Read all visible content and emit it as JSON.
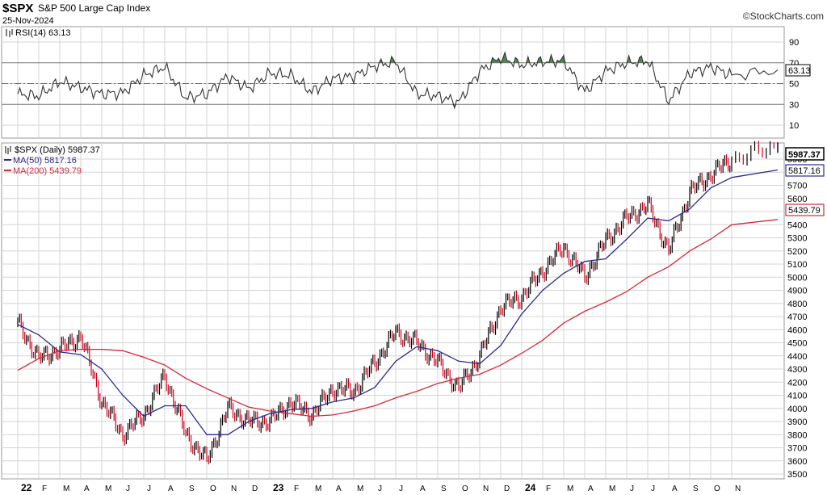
{
  "header": {
    "symbol": "$SPX",
    "name": "S&P 500 Large Cap Index",
    "date": "25-Nov-2024",
    "watermark": "©StockCharts.com"
  },
  "rsi_panel": {
    "legend": "RSI(14) 63.13",
    "current_label": "63.13",
    "levels": [
      90,
      70,
      50,
      30,
      10
    ],
    "overbought": 70,
    "oversold": 30,
    "midline": 50
  },
  "price_panel": {
    "legend_price": "$SPX (Daily) 5987.37",
    "legend_ma50": "MA(50) 5817.16",
    "legend_ma200": "MA(200) 5439.79",
    "label_price": "5987.37",
    "label_ma50": "5817.16",
    "label_ma200": "5439.79"
  },
  "x_axis": {
    "labels": [
      "22",
      "F",
      "M",
      "A",
      "M",
      "J",
      "J",
      "A",
      "S",
      "O",
      "N",
      "D",
      "23",
      "F",
      "M",
      "A",
      "M",
      "J",
      "J",
      "A",
      "S",
      "O",
      "N",
      "D",
      "24",
      "F",
      "M",
      "A",
      "M",
      "J",
      "J",
      "A",
      "S",
      "O",
      "N"
    ]
  },
  "colors": {
    "up": "#000000",
    "down": "#d0021b",
    "ma50": "#2b2b8c",
    "ma200": "#d6293b",
    "rsi_line": "#333333",
    "rsi_fill": "#4f7f4f",
    "grid": "#d4d4d4"
  },
  "chart_data": [
    {
      "type": "line",
      "title": "RSI(14)",
      "ylim": [
        0,
        100
      ],
      "y_ticks": [
        10,
        30,
        50,
        70,
        90
      ],
      "series": [
        {
          "name": "RSI(14)",
          "x": [
            "2022-01",
            "2022-02",
            "2022-03",
            "2022-04",
            "2022-05",
            "2022-06",
            "2022-07",
            "2022-08",
            "2022-09",
            "2022-10",
            "2022-11",
            "2022-12",
            "2023-01",
            "2023-02",
            "2023-03",
            "2023-04",
            "2023-05",
            "2023-06",
            "2023-07",
            "2023-08",
            "2023-09",
            "2023-10",
            "2023-11",
            "2023-12",
            "2024-01",
            "2024-02",
            "2024-03",
            "2024-04",
            "2024-05",
            "2024-06",
            "2024-07",
            "2024-08",
            "2024-09",
            "2024-10",
            "2024-11",
            "2024-11-25"
          ],
          "values": [
            40,
            38,
            52,
            46,
            40,
            41,
            58,
            66,
            36,
            40,
            57,
            45,
            60,
            58,
            42,
            55,
            57,
            67,
            71,
            40,
            38,
            32,
            62,
            75,
            68,
            71,
            72,
            42,
            62,
            70,
            72,
            33,
            60,
            66,
            58,
            63.13
          ]
        }
      ]
    },
    {
      "type": "line",
      "title": "$SPX (Daily)",
      "ylim": [
        3450,
        6050
      ],
      "y_ticks": [
        3500,
        3600,
        3700,
        3800,
        3900,
        4000,
        4100,
        4200,
        4300,
        4400,
        4500,
        4600,
        4700,
        4800,
        4900,
        5000,
        5100,
        5200,
        5300,
        5400,
        5500,
        5600,
        5700,
        5800,
        5900
      ],
      "series": [
        {
          "name": "$SPX (Daily)",
          "x": [
            "2022-01",
            "2022-02",
            "2022-03",
            "2022-04",
            "2022-05",
            "2022-06",
            "2022-07",
            "2022-08",
            "2022-09",
            "2022-10",
            "2022-11",
            "2022-12",
            "2023-01",
            "2023-02",
            "2023-03",
            "2023-04",
            "2023-05",
            "2023-06",
            "2023-07",
            "2023-08",
            "2023-09",
            "2023-10",
            "2023-11",
            "2023-12",
            "2024-01",
            "2024-02",
            "2024-03",
            "2024-04",
            "2024-05",
            "2024-06",
            "2024-07",
            "2024-08",
            "2024-09",
            "2024-10",
            "2024-11",
            "2024-11-25"
          ],
          "values": [
            4650,
            4380,
            4450,
            4550,
            4050,
            3800,
            3950,
            4250,
            3800,
            3600,
            4000,
            3900,
            3900,
            4050,
            3950,
            4150,
            4130,
            4350,
            4580,
            4500,
            4350,
            4150,
            4400,
            4770,
            4850,
            5050,
            5230,
            5000,
            5280,
            5450,
            5550,
            5200,
            5650,
            5780,
            5900,
            5987.37
          ]
        },
        {
          "name": "MA(50)",
          "x": [
            "2022-01",
            "2022-02",
            "2022-03",
            "2022-04",
            "2022-05",
            "2022-06",
            "2022-07",
            "2022-08",
            "2022-09",
            "2022-10",
            "2022-11",
            "2022-12",
            "2023-01",
            "2023-02",
            "2023-03",
            "2023-04",
            "2023-05",
            "2023-06",
            "2023-07",
            "2023-08",
            "2023-09",
            "2023-10",
            "2023-11",
            "2023-12",
            "2024-01",
            "2024-02",
            "2024-03",
            "2024-04",
            "2024-05",
            "2024-06",
            "2024-07",
            "2024-08",
            "2024-09",
            "2024-10",
            "2024-11",
            "2024-11-25"
          ],
          "values": [
            4640,
            4560,
            4430,
            4410,
            4300,
            4100,
            3940,
            4020,
            4020,
            3800,
            3800,
            3900,
            3960,
            3990,
            4000,
            4050,
            4080,
            4160,
            4360,
            4470,
            4440,
            4360,
            4340,
            4480,
            4720,
            4900,
            5030,
            5120,
            5140,
            5290,
            5450,
            5430,
            5520,
            5680,
            5760,
            5817.16
          ]
        },
        {
          "name": "MA(200)",
          "x": [
            "2022-01",
            "2022-02",
            "2022-03",
            "2022-04",
            "2022-05",
            "2022-06",
            "2022-07",
            "2022-08",
            "2022-09",
            "2022-10",
            "2022-11",
            "2022-12",
            "2023-01",
            "2023-02",
            "2023-03",
            "2023-04",
            "2023-05",
            "2023-06",
            "2023-07",
            "2023-08",
            "2023-09",
            "2023-10",
            "2023-11",
            "2023-12",
            "2024-01",
            "2024-02",
            "2024-03",
            "2024-04",
            "2024-05",
            "2024-06",
            "2024-07",
            "2024-08",
            "2024-09",
            "2024-10",
            "2024-11",
            "2024-11-25"
          ],
          "values": [
            4290,
            4380,
            4440,
            4450,
            4450,
            4440,
            4390,
            4330,
            4230,
            4150,
            4080,
            4010,
            3980,
            3960,
            3940,
            3950,
            3980,
            4020,
            4080,
            4130,
            4190,
            4230,
            4260,
            4330,
            4420,
            4520,
            4650,
            4740,
            4810,
            4890,
            5000,
            5080,
            5200,
            5290,
            5400,
            5439.79
          ]
        }
      ]
    }
  ]
}
